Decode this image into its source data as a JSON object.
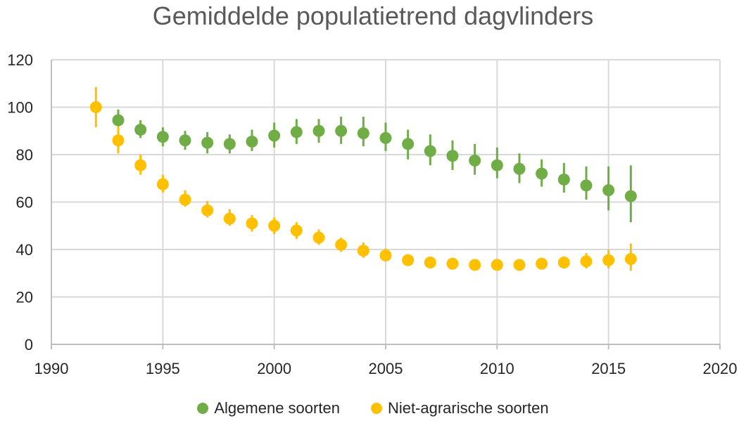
{
  "chart_data": {
    "type": "scatter",
    "title": "Gemiddelde populatietrend dagvlinders",
    "xlabel": "",
    "ylabel": "",
    "xlim": [
      1990,
      2020
    ],
    "ylim": [
      0,
      120
    ],
    "xticks": [
      1990,
      1995,
      2000,
      2005,
      2010,
      2015,
      2020
    ],
    "yticks": [
      0,
      20,
      40,
      60,
      80,
      100,
      120
    ],
    "grid": true,
    "legend_position": "bottom",
    "series": [
      {
        "name": "Algemene soorten",
        "color": "#70ad47",
        "x": [
          1993,
          1994,
          1995,
          1996,
          1997,
          1998,
          1999,
          2000,
          2001,
          2002,
          2003,
          2004,
          2005,
          2006,
          2007,
          2008,
          2009,
          2010,
          2011,
          2012,
          2013,
          2014,
          2015,
          2016
        ],
        "y": [
          94.5,
          90.5,
          87.5,
          86,
          85,
          84.5,
          85.5,
          88,
          89.5,
          90,
          90,
          89,
          87,
          84.5,
          81.5,
          79.5,
          77.5,
          75.5,
          74,
          72,
          69.5,
          67,
          65,
          62.5
        ],
        "error_low": [
          90,
          87,
          83.5,
          82,
          80.5,
          80.5,
          81.5,
          83,
          84.5,
          85,
          84.5,
          83.5,
          81.5,
          78,
          75.5,
          73.5,
          71.5,
          70,
          68,
          66.5,
          64,
          61,
          56.5,
          51.5
        ],
        "error_high": [
          99,
          94.5,
          91.5,
          90,
          89.5,
          88.5,
          90.5,
          93.5,
          95,
          95,
          96,
          96,
          93.5,
          90.5,
          88.5,
          86,
          84.5,
          83,
          80.5,
          78,
          76.5,
          75,
          75,
          75.5
        ]
      },
      {
        "name": "Niet-agrarische soorten",
        "color": "#ffc000",
        "x": [
          1992,
          1993,
          1994,
          1995,
          1996,
          1997,
          1998,
          1999,
          2000,
          2001,
          2002,
          2003,
          2004,
          2005,
          2006,
          2007,
          2008,
          2009,
          2010,
          2011,
          2012,
          2013,
          2014,
          2015,
          2016
        ],
        "y": [
          100,
          86,
          75.5,
          67.5,
          61,
          56.5,
          53,
          51,
          50,
          48,
          45,
          42,
          39.5,
          37.5,
          35.5,
          34.5,
          34,
          33.5,
          33.5,
          33.5,
          34,
          34.5,
          35,
          35.5,
          36
        ],
        "error_low": [
          91.5,
          80.5,
          71.5,
          64,
          58,
          53.5,
          50,
          47.5,
          46.5,
          44.5,
          42,
          39,
          36.5,
          35,
          33.5,
          32.5,
          32,
          32,
          32,
          32,
          32,
          32.5,
          32,
          32,
          31
        ],
        "error_high": [
          108.5,
          92,
          80,
          71.5,
          65,
          60.5,
          57,
          54.5,
          53.5,
          51.5,
          48.5,
          45,
          43,
          40.5,
          38,
          37,
          36.5,
          35.5,
          35.5,
          35.5,
          36,
          37,
          38.5,
          40,
          42.5
        ]
      }
    ]
  }
}
